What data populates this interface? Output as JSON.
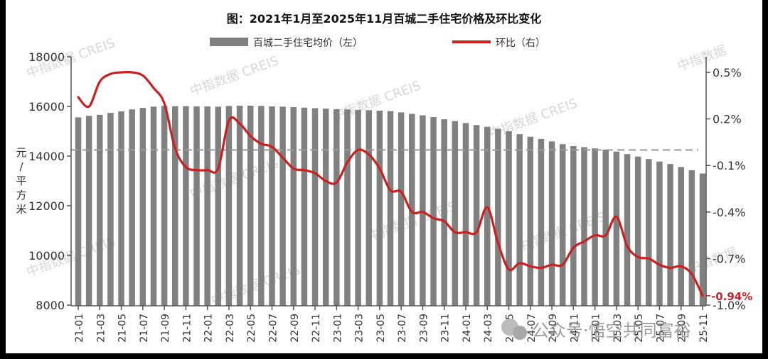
{
  "chart_data": {
    "type": "bar+line",
    "title": "图：2021年1月至2025年11月百城二手住宅价格及环比变化",
    "xlabel": "",
    "ylabel_left": "元/平方米",
    "ylabel_right": "",
    "ylim_left": [
      8000,
      18000
    ],
    "ylim_right": [
      -1.0,
      0.5
    ],
    "yticks_left": [
      "18000",
      "16000",
      "14000",
      "12000",
      "10000",
      "8000"
    ],
    "yticks_right": [
      "0.5%",
      "0.2%",
      "-0.1%",
      "-0.4%",
      "-0.7%",
      "-1.0%"
    ],
    "grid": false,
    "legend_position": "top",
    "legend": [
      {
        "name": "百城二手住宅均价（左）",
        "color": "#808080",
        "type": "bar"
      },
      {
        "name": "环比（右）",
        "color": "#cc1f1f",
        "type": "line"
      }
    ],
    "reference_line": {
      "axis": "right",
      "value": 0.0,
      "style": "dashed",
      "color": "#9a9a9a"
    },
    "annotation": {
      "text": "-0.94%",
      "color": "#d0202a",
      "value": -0.94
    },
    "x_ticks": [
      "21-01",
      "21-03",
      "21-05",
      "21-07",
      "21-09",
      "21-11",
      "22-01",
      "22-03",
      "22-05",
      "22-07",
      "22-09",
      "22-11",
      "23-01",
      "23-03",
      "23-05",
      "23-07",
      "23-09",
      "23-11",
      "24-01",
      "24-03",
      "24-05",
      "24-07",
      "24-09",
      "24-11",
      "25-01",
      "25-03",
      "25-05",
      "25-07",
      "25-09",
      "25-11"
    ],
    "categories": [
      "21-01",
      "21-02",
      "21-03",
      "21-04",
      "21-05",
      "21-06",
      "21-07",
      "21-08",
      "21-09",
      "21-10",
      "21-11",
      "21-12",
      "22-01",
      "22-02",
      "22-03",
      "22-04",
      "22-05",
      "22-06",
      "22-07",
      "22-08",
      "22-09",
      "22-10",
      "22-11",
      "22-12",
      "23-01",
      "23-02",
      "23-03",
      "23-04",
      "23-05",
      "23-06",
      "23-07",
      "23-08",
      "23-09",
      "23-10",
      "23-11",
      "23-12",
      "24-01",
      "24-02",
      "24-03",
      "24-04",
      "24-05",
      "24-06",
      "24-07",
      "24-08",
      "24-09",
      "24-10",
      "24-11",
      "24-12",
      "25-01",
      "25-02",
      "25-03",
      "25-04",
      "25-05",
      "25-06",
      "25-07",
      "25-08",
      "25-09",
      "25-10",
      "25-11"
    ],
    "series": [
      {
        "name": "百城二手住宅均价（左）",
        "type": "bar",
        "axis": "left",
        "values": [
          15560,
          15620,
          15660,
          15740,
          15800,
          15880,
          15940,
          15990,
          16020,
          16010,
          16010,
          16000,
          16000,
          15990,
          16020,
          16030,
          16030,
          16020,
          16000,
          15990,
          15970,
          15950,
          15930,
          15910,
          15890,
          15880,
          15860,
          15850,
          15830,
          15810,
          15760,
          15700,
          15640,
          15570,
          15480,
          15410,
          15330,
          15250,
          15180,
          15100,
          15000,
          14880,
          14780,
          14690,
          14590,
          14480,
          14400,
          14360,
          14310,
          14260,
          14180,
          14080,
          13980,
          13880,
          13780,
          13680,
          13560,
          13430,
          13300
        ]
      },
      {
        "name": "环比（右）",
        "type": "line",
        "axis": "right",
        "values": [
          0.34,
          0.28,
          0.44,
          0.49,
          0.5,
          0.5,
          0.48,
          0.4,
          0.3,
          0.01,
          -0.11,
          -0.13,
          -0.13,
          -0.12,
          0.19,
          0.17,
          0.09,
          0.04,
          0.02,
          -0.05,
          -0.12,
          -0.13,
          -0.15,
          -0.2,
          -0.21,
          -0.08,
          0.0,
          -0.03,
          -0.12,
          -0.26,
          -0.27,
          -0.4,
          -0.4,
          -0.44,
          -0.46,
          -0.53,
          -0.53,
          -0.53,
          -0.37,
          -0.6,
          -0.77,
          -0.73,
          -0.75,
          -0.76,
          -0.74,
          -0.74,
          -0.63,
          -0.59,
          -0.55,
          -0.55,
          -0.43,
          -0.62,
          -0.69,
          -0.7,
          -0.74,
          -0.76,
          -0.75,
          -0.8,
          -0.94
        ]
      }
    ]
  },
  "watermarks": [
    "中指数据 CREIS",
    "中指数据"
  ],
  "footer_watermark": "公众号·悟空共同富裕"
}
